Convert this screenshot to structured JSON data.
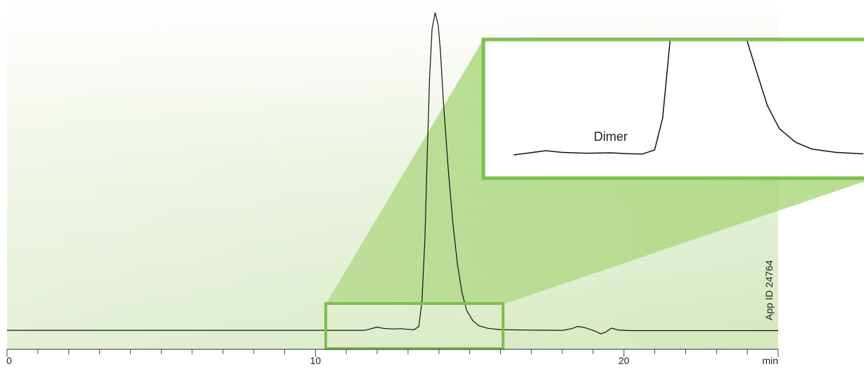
{
  "chart_data": {
    "type": "line",
    "x_unit_label": "min",
    "xlim": [
      0,
      25
    ],
    "x_ticks": [
      {
        "value": 0,
        "label": "0"
      },
      {
        "value": 10,
        "label": "10"
      },
      {
        "value": 20,
        "label": "20"
      }
    ],
    "minor_tick_step": 1,
    "annotations": {
      "inset_peak_label": "Dimer",
      "app_id": "App ID 24764"
    },
    "zoom_region_x": [
      10.35,
      16.15
    ],
    "colors": {
      "trace": "#111111",
      "zoom_box": "#7dc04b",
      "background_gradient_start": "#ffffff",
      "background_gradient_end": "#d5e8bd",
      "funnel": "#a9d67b",
      "axis": "#555555"
    },
    "series": [
      {
        "points": [
          [
            0,
            1.3
          ],
          [
            5,
            1.3
          ],
          [
            10,
            1.3
          ],
          [
            11.6,
            1.3
          ],
          [
            11.8,
            1.8
          ],
          [
            12.0,
            2.3
          ],
          [
            12.2,
            1.9
          ],
          [
            12.5,
            1.7
          ],
          [
            12.8,
            1.8
          ],
          [
            13.0,
            1.6
          ],
          [
            13.2,
            1.5
          ],
          [
            13.35,
            2.5
          ],
          [
            13.45,
            10
          ],
          [
            13.55,
            30
          ],
          [
            13.62,
            55
          ],
          [
            13.7,
            80
          ],
          [
            13.78,
            95
          ],
          [
            13.88,
            100
          ],
          [
            13.98,
            96
          ],
          [
            14.05,
            88
          ],
          [
            14.15,
            72
          ],
          [
            14.3,
            52
          ],
          [
            14.45,
            35
          ],
          [
            14.6,
            22
          ],
          [
            14.75,
            13
          ],
          [
            14.9,
            7.5
          ],
          [
            15.1,
            4.3
          ],
          [
            15.3,
            2.7
          ],
          [
            15.6,
            1.9
          ],
          [
            16.0,
            1.5
          ],
          [
            17.0,
            1.35
          ],
          [
            18.0,
            1.3
          ],
          [
            18.3,
            1.8
          ],
          [
            18.5,
            2.5
          ],
          [
            18.7,
            2.2
          ],
          [
            18.9,
            1.6
          ],
          [
            19.1,
            0.9
          ],
          [
            19.25,
            0.2
          ],
          [
            19.4,
            0.7
          ],
          [
            19.6,
            2.0
          ],
          [
            19.8,
            1.4
          ],
          [
            20.2,
            1.2
          ],
          [
            22,
            1.2
          ],
          [
            25,
            1.2
          ]
        ]
      }
    ],
    "ylim": [
      0,
      110
    ]
  }
}
